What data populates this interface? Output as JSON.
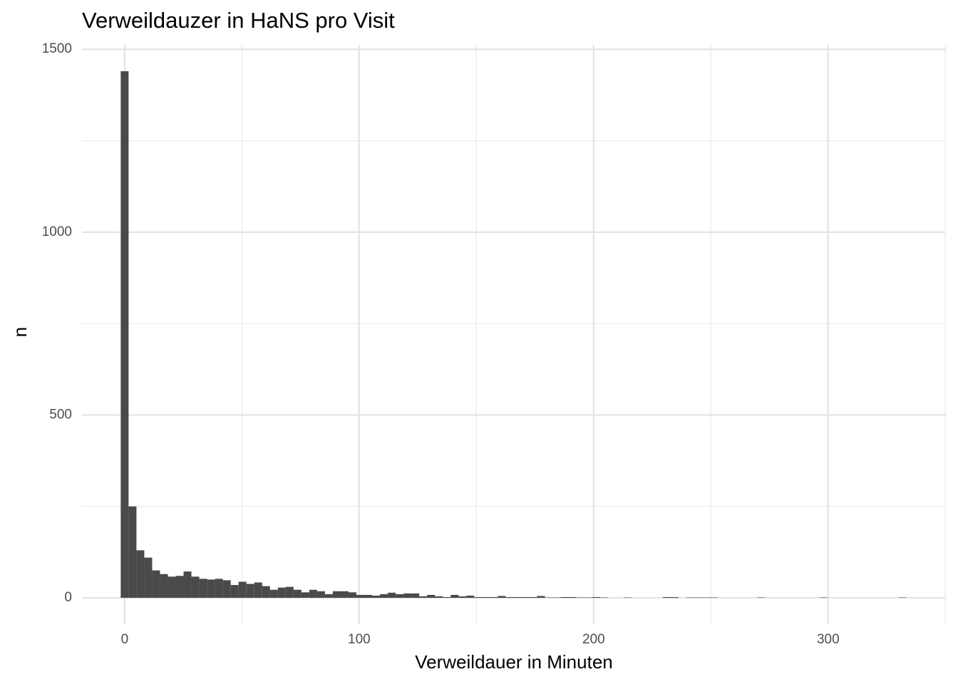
{
  "chart_data": {
    "type": "histogram",
    "title": "Verweildauzer in HaNS pro Visit",
    "x_label": "Verweildauer in Minuten",
    "y_label": "n",
    "color": "#4a4a4a",
    "grid": true,
    "bins": [
      -1.675,
      1.675,
      5.025,
      8.375,
      11.725,
      15.075,
      18.425,
      21.775,
      25.125,
      28.475,
      31.825,
      35.175,
      38.525,
      41.875,
      45.225,
      48.575,
      51.925,
      55.275,
      58.625,
      61.975,
      65.325,
      68.675,
      72.025,
      75.375,
      78.725,
      82.075,
      85.425,
      88.775,
      92.125,
      95.475,
      98.825,
      102.175,
      105.525,
      108.875,
      112.225,
      115.575,
      118.925,
      122.275,
      125.625,
      128.975,
      132.325,
      135.675,
      139.025,
      142.375,
      145.725,
      149.075,
      152.425,
      155.775,
      159.125,
      162.475,
      165.825,
      169.175,
      172.525,
      175.875,
      179.225,
      182.575,
      185.925,
      189.275,
      192.625,
      195.975,
      199.325,
      202.675,
      206.025,
      209.375,
      212.725,
      216.075,
      219.425,
      222.775,
      226.125,
      229.475,
      232.825,
      236.175,
      239.525,
      242.875,
      246.225,
      249.575,
      252.925,
      256.275,
      259.625,
      262.975,
      266.325,
      269.675,
      273.025,
      276.375,
      279.725,
      283.075,
      286.425,
      289.775,
      293.125,
      296.475,
      299.825,
      303.175,
      306.525,
      309.875,
      313.225,
      316.575,
      319.925,
      323.275,
      326.625,
      329.975,
      333.325
    ],
    "values": [
      1440,
      250,
      130,
      110,
      75,
      65,
      58,
      60,
      72,
      58,
      52,
      50,
      52,
      48,
      35,
      44,
      38,
      42,
      32,
      22,
      28,
      30,
      22,
      15,
      22,
      18,
      10,
      18,
      18,
      15,
      8,
      8,
      6,
      10,
      14,
      10,
      12,
      12,
      4,
      8,
      4,
      2,
      8,
      4,
      6,
      2,
      2,
      2,
      5,
      2,
      2,
      2,
      2,
      5,
      1,
      1,
      2,
      2,
      1,
      1,
      2,
      1,
      0,
      0,
      1,
      0,
      0,
      0,
      0,
      2,
      2,
      0,
      1,
      1,
      1,
      1,
      0,
      0,
      0,
      0,
      0,
      1,
      0,
      0,
      0,
      0,
      0,
      0,
      0,
      1,
      0,
      0,
      0,
      0,
      0,
      0,
      0,
      0,
      0,
      1
    ],
    "xlim": [
      -18.2,
      350.2
    ],
    "ylim": [
      -72,
      1512
    ],
    "xticks": [
      0,
      100,
      200,
      300
    ],
    "yticks": [
      0,
      500,
      1000,
      1500
    ]
  }
}
